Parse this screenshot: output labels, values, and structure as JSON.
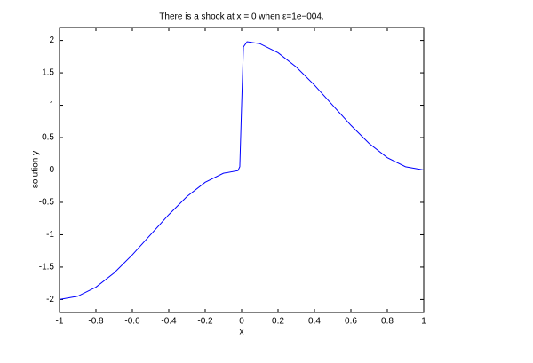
{
  "chart_data": {
    "type": "line",
    "title": "There is a shock at x = 0 when ε=1e−004.",
    "xlabel": "x",
    "ylabel": "solution y",
    "x": [
      -1,
      -0.9,
      -0.8,
      -0.7,
      -0.6,
      -0.5,
      -0.4,
      -0.3,
      -0.2,
      -0.1,
      -0.02,
      -0.01,
      0,
      0.01,
      0.03,
      0.1,
      0.2,
      0.3,
      0.4,
      0.5,
      0.6,
      0.7,
      0.8,
      0.9,
      1
    ],
    "series": [
      {
        "color": "#0000ff",
        "values": [
          -2,
          -1.95,
          -1.81,
          -1.59,
          -1.31,
          -1,
          -0.69,
          -0.41,
          -0.19,
          -0.05,
          -0.01,
          0.05,
          1.0,
          1.9,
          1.98,
          1.95,
          1.81,
          1.59,
          1.31,
          1,
          0.69,
          0.41,
          0.19,
          0.05,
          0
        ]
      }
    ],
    "xlim": [
      -1,
      1
    ],
    "xticks": [
      -1,
      -0.8,
      -0.6,
      -0.4,
      -0.2,
      0,
      0.2,
      0.4,
      0.6,
      0.8,
      1
    ],
    "ylim": [
      -2.2,
      2.2
    ],
    "yticks": [
      -2,
      -1.5,
      -1,
      -0.5,
      0,
      0.5,
      1,
      1.5,
      2
    ],
    "grid": false
  }
}
